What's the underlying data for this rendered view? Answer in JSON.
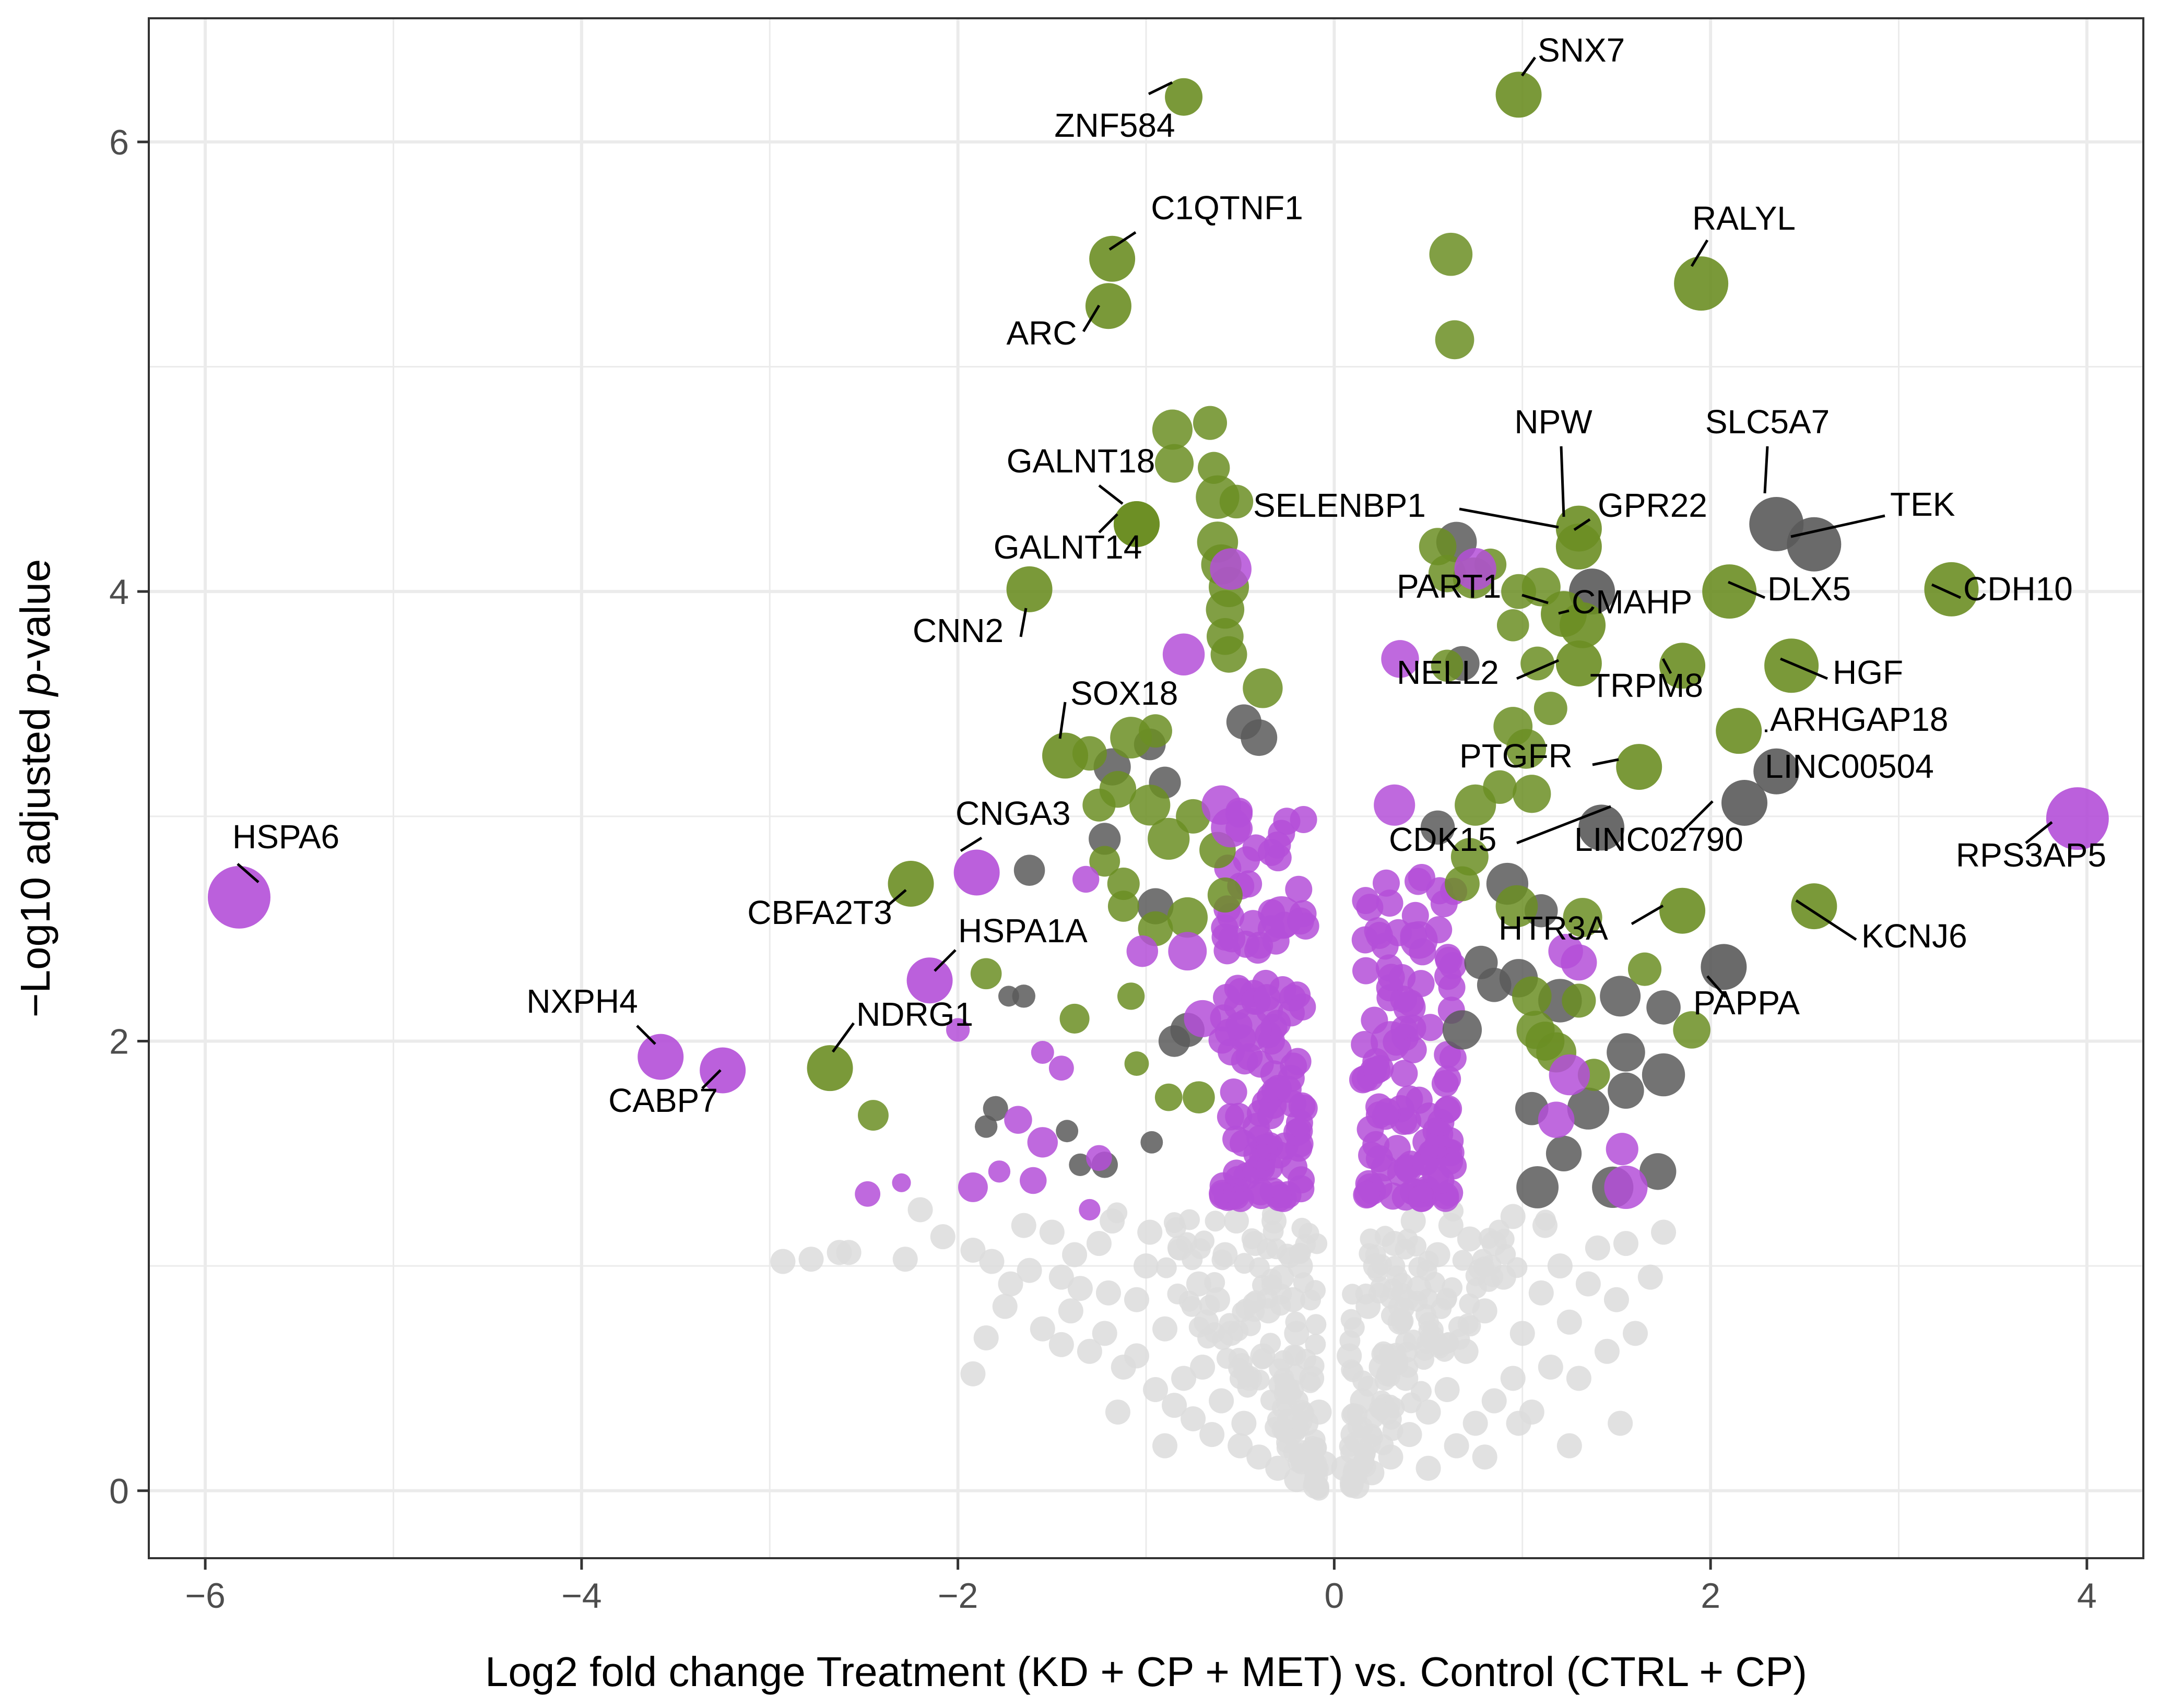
{
  "chart_data": {
    "type": "scatter",
    "subtype": "volcano",
    "title": "",
    "xlabel": "Log2 fold change Treatment (KD + CP + MET) vs. Control (CTRL + CP)",
    "ylabel_parts": [
      "−Log10 adjusted ",
      "p",
      "-value"
    ],
    "xlim": [
      -6.3,
      4.3
    ],
    "ylim": [
      -0.3,
      6.55
    ],
    "x_ticks": [
      -6,
      -4,
      -2,
      0,
      2,
      4
    ],
    "x_tick_labels": [
      "−6",
      "−4",
      "−2",
      "0",
      "2",
      "4"
    ],
    "y_ticks": [
      0,
      2,
      4,
      6
    ],
    "y_tick_labels": [
      "0",
      "2",
      "4",
      "6"
    ],
    "grid": true,
    "colors": {
      "green": "#6b8e23",
      "purple": "#b44fd8",
      "gray": "#5a5a5a",
      "nonsig": "#dcdcdc",
      "grid": "#ebebeb",
      "panel_border": "#333333"
    },
    "labeled_points": [
      {
        "gene": "SNX7",
        "x": 0.98,
        "y": 6.21,
        "group": "green",
        "size": 3
      },
      {
        "gene": "ZNF584",
        "x": -0.8,
        "y": 6.2,
        "group": "green",
        "size": 2
      },
      {
        "gene": "C1QTNF1",
        "x": -1.18,
        "y": 5.48,
        "group": "green",
        "size": 3
      },
      {
        "gene": "ARC",
        "x": -1.2,
        "y": 5.27,
        "group": "green",
        "size": 3
      },
      {
        "gene": "RALYL",
        "x": 1.95,
        "y": 5.37,
        "group": "green",
        "size": 4
      },
      {
        "gene": "NPW",
        "x": 1.3,
        "y": 4.28,
        "group": "green",
        "size": 3
      },
      {
        "gene": "SLC5A7",
        "x": 2.35,
        "y": 4.3,
        "group": "gray",
        "size": 4
      },
      {
        "gene": "TEK",
        "x": 2.55,
        "y": 4.21,
        "group": "gray",
        "size": 4
      },
      {
        "gene": "GPR22",
        "x": 1.3,
        "y": 4.2,
        "group": "green",
        "size": 3
      },
      {
        "gene": "SELENBP1",
        "x": 1.37,
        "y": 4.0,
        "group": "gray",
        "size": 3
      },
      {
        "gene": "GALNT18",
        "x": -1.05,
        "y": 4.3,
        "group": "green",
        "size": 3
      },
      {
        "gene": "GALNT14",
        "x": -1.05,
        "y": 4.3,
        "group": "green",
        "size": 3
      },
      {
        "gene": "CNN2",
        "x": -1.62,
        "y": 4.01,
        "group": "green",
        "size": 3
      },
      {
        "gene": "CDH10",
        "x": 3.28,
        "y": 4.01,
        "group": "green",
        "size": 4
      },
      {
        "gene": "DLX5",
        "x": 2.1,
        "y": 4.0,
        "group": "green",
        "size": 4
      },
      {
        "gene": "PART1",
        "x": 1.22,
        "y": 3.9,
        "group": "green",
        "size": 3
      },
      {
        "gene": "CMAHP",
        "x": 1.32,
        "y": 3.85,
        "group": "green",
        "size": 3
      },
      {
        "gene": "NELL2",
        "x": 1.3,
        "y": 3.68,
        "group": "green",
        "size": 3
      },
      {
        "gene": "TRPM8",
        "x": 1.85,
        "y": 3.67,
        "group": "green",
        "size": 3
      },
      {
        "gene": "HGF",
        "x": 2.43,
        "y": 3.67,
        "group": "green",
        "size": 4
      },
      {
        "gene": "SOX18",
        "x": -1.43,
        "y": 3.27,
        "group": "green",
        "size": 3
      },
      {
        "gene": "ARHGAP18",
        "x": 2.15,
        "y": 3.38,
        "group": "green",
        "size": 3
      },
      {
        "gene": "LINC00504",
        "x": 2.35,
        "y": 3.2,
        "group": "gray",
        "size": 3
      },
      {
        "gene": "PTGFR",
        "x": 1.62,
        "y": 3.22,
        "group": "green",
        "size": 3
      },
      {
        "gene": "LINC02790",
        "x": 2.18,
        "y": 3.06,
        "group": "gray",
        "size": 3
      },
      {
        "gene": "CDK15",
        "x": 1.42,
        "y": 2.95,
        "group": "gray",
        "size": 3
      },
      {
        "gene": "RPS3AP5",
        "x": 3.95,
        "y": 2.99,
        "group": "purple",
        "size": 5
      },
      {
        "gene": "HSPA6",
        "x": -5.82,
        "y": 2.64,
        "group": "purple",
        "size": 5
      },
      {
        "gene": "CNGA3",
        "x": -1.9,
        "y": 2.75,
        "group": "purple",
        "size": 3
      },
      {
        "gene": "CBFA2T3",
        "x": -2.25,
        "y": 2.7,
        "group": "green",
        "size": 3
      },
      {
        "gene": "KCNJ6",
        "x": 2.55,
        "y": 2.6,
        "group": "green",
        "size": 3
      },
      {
        "gene": "HTR3A",
        "x": 1.85,
        "y": 2.58,
        "group": "green",
        "size": 3
      },
      {
        "gene": "HSPA1A",
        "x": -2.15,
        "y": 2.27,
        "group": "purple",
        "size": 3
      },
      {
        "gene": "PAPPA",
        "x": 2.07,
        "y": 2.33,
        "group": "gray",
        "size": 3
      },
      {
        "gene": "NDRG1",
        "x": -2.68,
        "y": 1.88,
        "group": "green",
        "size": 3
      },
      {
        "gene": "NXPH4",
        "x": -3.58,
        "y": 1.93,
        "group": "purple",
        "size": 3
      },
      {
        "gene": "CABP7",
        "x": -3.25,
        "y": 1.87,
        "group": "purple",
        "size": 3
      }
    ],
    "unlabeled_points": {
      "green": [
        [
          0.62,
          5.5
        ],
        [
          0.64,
          5.12
        ],
        [
          -0.86,
          4.72
        ],
        [
          -0.66,
          4.75
        ],
        [
          -0.85,
          4.57
        ],
        [
          -0.64,
          4.55
        ],
        [
          -0.62,
          4.42
        ],
        [
          -0.52,
          4.4
        ],
        [
          -0.62,
          4.22
        ],
        [
          -0.6,
          4.12
        ],
        [
          -0.56,
          4.02
        ],
        [
          -0.58,
          3.92
        ],
        [
          -0.58,
          3.8
        ],
        [
          -0.56,
          3.72
        ],
        [
          -0.38,
          3.57
        ],
        [
          0.55,
          4.2
        ],
        [
          0.6,
          4.08
        ],
        [
          0.74,
          4.06
        ],
        [
          0.83,
          4.12
        ],
        [
          0.98,
          4.0
        ],
        [
          1.1,
          4.02
        ],
        [
          0.95,
          3.85
        ],
        [
          0.6,
          3.67
        ],
        [
          1.08,
          3.68
        ],
        [
          1.15,
          3.48
        ],
        [
          0.95,
          3.4
        ],
        [
          1.02,
          3.3
        ],
        [
          1.05,
          3.1
        ],
        [
          0.88,
          3.13
        ],
        [
          0.75,
          3.05
        ],
        [
          0.72,
          2.82
        ],
        [
          0.68,
          2.7
        ],
        [
          0.97,
          2.6
        ],
        [
          1.32,
          2.55
        ],
        [
          1.65,
          2.32
        ],
        [
          1.07,
          2.05
        ],
        [
          1.12,
          2.0
        ],
        [
          1.18,
          1.95
        ],
        [
          1.38,
          1.85
        ],
        [
          1.9,
          2.05
        ],
        [
          1.05,
          2.2
        ],
        [
          1.3,
          2.18
        ],
        [
          -0.95,
          3.38
        ],
        [
          -1.08,
          3.35
        ],
        [
          -1.15,
          3.12
        ],
        [
          -0.98,
          3.05
        ],
        [
          -0.88,
          2.9
        ],
        [
          -0.75,
          3.0
        ],
        [
          -1.22,
          2.8
        ],
        [
          -1.3,
          3.28
        ],
        [
          -1.25,
          3.05
        ],
        [
          -1.12,
          2.7
        ],
        [
          -1.12,
          2.6
        ],
        [
          -0.78,
          2.55
        ],
        [
          -1.85,
          2.3
        ],
        [
          -1.38,
          2.1
        ],
        [
          -1.08,
          2.2
        ],
        [
          -1.05,
          1.9
        ],
        [
          -2.45,
          1.67
        ],
        [
          -0.88,
          1.75
        ],
        [
          -0.72,
          1.75
        ],
        [
          -0.62,
          2.85
        ],
        [
          -0.58,
          2.65
        ],
        [
          -0.95,
          2.5
        ]
      ],
      "purple": [
        [
          -0.55,
          4.1
        ],
        [
          0.75,
          4.1
        ],
        [
          -0.8,
          3.72
        ],
        [
          0.35,
          3.7
        ],
        [
          -2.0,
          2.05
        ],
        [
          -1.55,
          1.95
        ],
        [
          -1.45,
          1.88
        ],
        [
          -1.68,
          1.65
        ],
        [
          -1.78,
          1.42
        ],
        [
          -1.6,
          1.38
        ],
        [
          -1.92,
          1.35
        ],
        [
          -2.3,
          1.37
        ],
        [
          -2.48,
          1.32
        ],
        [
          -1.25,
          1.48
        ],
        [
          -1.02,
          2.4
        ],
        [
          -1.32,
          2.72
        ],
        [
          -0.78,
          2.4
        ],
        [
          -0.7,
          2.1
        ],
        [
          -0.45,
          2.05
        ],
        [
          0.3,
          2.0
        ],
        [
          0.4,
          2.15
        ],
        [
          -0.28,
          2.55
        ],
        [
          0.45,
          2.45
        ],
        [
          1.3,
          2.35
        ],
        [
          1.25,
          1.85
        ],
        [
          1.53,
          1.52
        ],
        [
          1.18,
          1.65
        ],
        [
          1.55,
          1.35
        ],
        [
          -1.3,
          1.25
        ],
        [
          -1.55,
          1.55
        ],
        [
          0.32,
          3.05
        ],
        [
          -0.6,
          3.05
        ],
        [
          -0.55,
          2.95
        ],
        [
          1.23,
          2.4
        ]
      ],
      "gray": [
        [
          0.65,
          4.22
        ],
        [
          0.68,
          3.68
        ],
        [
          -0.48,
          3.42
        ],
        [
          -0.4,
          3.35
        ],
        [
          -0.98,
          3.32
        ],
        [
          -1.22,
          2.9
        ],
        [
          -1.18,
          3.22
        ],
        [
          -0.9,
          3.15
        ],
        [
          -1.62,
          2.76
        ],
        [
          -0.95,
          2.6
        ],
        [
          -1.73,
          2.2
        ],
        [
          -1.65,
          2.2
        ],
        [
          -1.8,
          1.7
        ],
        [
          -1.85,
          1.62
        ],
        [
          -1.42,
          1.6
        ],
        [
          -1.35,
          1.45
        ],
        [
          -0.97,
          1.55
        ],
        [
          -0.85,
          2.0
        ],
        [
          -0.78,
          2.05
        ],
        [
          0.78,
          2.35
        ],
        [
          0.85,
          2.25
        ],
        [
          0.98,
          2.28
        ],
        [
          1.1,
          2.58
        ],
        [
          0.92,
          2.7
        ],
        [
          1.2,
          2.18
        ],
        [
          1.52,
          2.2
        ],
        [
          1.75,
          2.15
        ],
        [
          1.55,
          1.95
        ],
        [
          1.75,
          1.85
        ],
        [
          1.55,
          1.78
        ],
        [
          1.35,
          1.7
        ],
        [
          1.05,
          1.7
        ],
        [
          1.22,
          1.5
        ],
        [
          1.48,
          1.35
        ],
        [
          1.72,
          1.42
        ],
        [
          0.68,
          2.05
        ],
        [
          0.55,
          2.95
        ],
        [
          1.08,
          1.35
        ],
        [
          -1.22,
          1.45
        ]
      ],
      "nonsig": [
        [
          -2.93,
          1.02
        ],
        [
          -2.78,
          1.03
        ],
        [
          -2.63,
          1.06
        ],
        [
          -2.58,
          1.06
        ],
        [
          -2.28,
          1.03
        ],
        [
          -2.08,
          1.13
        ],
        [
          -1.92,
          1.07
        ],
        [
          -1.82,
          1.02
        ],
        [
          -1.72,
          0.92
        ],
        [
          -1.62,
          0.98
        ],
        [
          -1.45,
          0.95
        ],
        [
          -1.35,
          0.9
        ],
        [
          -1.2,
          0.88
        ],
        [
          -1.05,
          0.85
        ],
        [
          -1.38,
          1.05
        ],
        [
          -1.5,
          1.15
        ],
        [
          -1.18,
          1.2
        ],
        [
          -1.65,
          1.18
        ],
        [
          -2.2,
          1.25
        ],
        [
          -1.92,
          0.52
        ],
        [
          -1.85,
          0.68
        ],
        [
          -1.75,
          0.82
        ],
        [
          -1.55,
          0.72
        ],
        [
          -1.45,
          0.65
        ],
        [
          -1.3,
          0.62
        ],
        [
          -1.22,
          0.7
        ],
        [
          -1.12,
          0.55
        ],
        [
          -1.05,
          0.6
        ],
        [
          -0.95,
          0.45
        ],
        [
          -0.9,
          0.72
        ],
        [
          -0.85,
          0.38
        ],
        [
          -0.8,
          0.5
        ],
        [
          -0.75,
          0.32
        ],
        [
          -0.7,
          0.55
        ],
        [
          -0.65,
          0.25
        ],
        [
          -0.6,
          0.4
        ],
        [
          -0.55,
          0.7
        ],
        [
          -0.5,
          0.2
        ],
        [
          -0.45,
          0.5
        ],
        [
          -0.4,
          0.15
        ],
        [
          -0.35,
          0.8
        ],
        [
          -0.3,
          0.1
        ],
        [
          -0.25,
          0.45
        ],
        [
          -0.2,
          0.05
        ],
        [
          -0.15,
          0.3
        ],
        [
          -0.1,
          0.02
        ],
        [
          -0.05,
          0.12
        ],
        [
          -0.58,
          1.05
        ],
        [
          -0.72,
          0.92
        ],
        [
          -0.82,
          1.08
        ],
        [
          -0.98,
          1.15
        ],
        [
          -0.62,
          0.85
        ],
        [
          -0.42,
          1.1
        ],
        [
          -0.28,
          0.95
        ],
        [
          -0.48,
          0.3
        ],
        [
          -0.38,
          0.6
        ],
        [
          -0.2,
          0.7
        ],
        [
          -0.18,
          1.0
        ],
        [
          -0.12,
          0.5
        ],
        [
          0.05,
          0.1
        ],
        [
          0.1,
          0.25
        ],
        [
          0.12,
          0.02
        ],
        [
          0.15,
          0.4
        ],
        [
          0.2,
          0.08
        ],
        [
          0.25,
          0.55
        ],
        [
          0.3,
          0.15
        ],
        [
          0.35,
          0.75
        ],
        [
          0.4,
          0.25
        ],
        [
          0.45,
          0.9
        ],
        [
          0.5,
          0.35
        ],
        [
          0.55,
          1.05
        ],
        [
          0.6,
          0.45
        ],
        [
          0.65,
          0.2
        ],
        [
          0.7,
          0.62
        ],
        [
          0.75,
          0.3
        ],
        [
          0.8,
          0.8
        ],
        [
          0.85,
          0.4
        ],
        [
          0.9,
          0.95
        ],
        [
          0.95,
          0.5
        ],
        [
          1.0,
          0.7
        ],
        [
          1.05,
          0.35
        ],
        [
          1.1,
          0.88
        ],
        [
          1.15,
          0.55
        ],
        [
          1.2,
          1.0
        ],
        [
          1.25,
          0.75
        ],
        [
          1.3,
          0.5
        ],
        [
          1.35,
          0.92
        ],
        [
          1.4,
          1.08
        ],
        [
          1.45,
          0.62
        ],
        [
          1.5,
          0.85
        ],
        [
          1.55,
          1.1
        ],
        [
          1.6,
          0.7
        ],
        [
          1.68,
          0.95
        ],
        [
          1.75,
          1.15
        ],
        [
          1.52,
          0.3
        ],
        [
          0.22,
          1.0
        ],
        [
          0.32,
          1.1
        ],
        [
          0.42,
          1.2
        ],
        [
          0.18,
          0.82
        ],
        [
          0.08,
          0.6
        ],
        [
          0.62,
          1.18
        ],
        [
          0.72,
          1.12
        ],
        [
          0.52,
          0.68
        ],
        [
          0.28,
          0.35
        ],
        [
          0.38,
          0.5
        ],
        [
          0.95,
          1.22
        ],
        [
          1.12,
          1.18
        ],
        [
          0.85,
          1.1
        ],
        [
          -0.32,
          1.2
        ],
        [
          -0.52,
          1.2
        ],
        [
          -0.22,
          0.85
        ],
        [
          -0.08,
          0.35
        ],
        [
          -0.68,
          0.75
        ],
        [
          -1.0,
          1.0
        ],
        [
          -1.25,
          1.1
        ],
        [
          -1.4,
          0.8
        ],
        [
          -0.9,
          0.2
        ],
        [
          -1.15,
          0.35
        ],
        [
          0.5,
          0.1
        ],
        [
          0.8,
          0.15
        ],
        [
          1.25,
          0.2
        ],
        [
          0.98,
          0.3
        ]
      ],
      "sig_left_band": {
        "x_range": [
          -0.6,
          -0.15
        ],
        "y_range": [
          1.3,
          3.1
        ],
        "count": 120
      },
      "sig_right_band": {
        "x_range": [
          0.15,
          0.65
        ],
        "y_range": [
          1.3,
          2.8
        ],
        "count": 110
      }
    }
  }
}
